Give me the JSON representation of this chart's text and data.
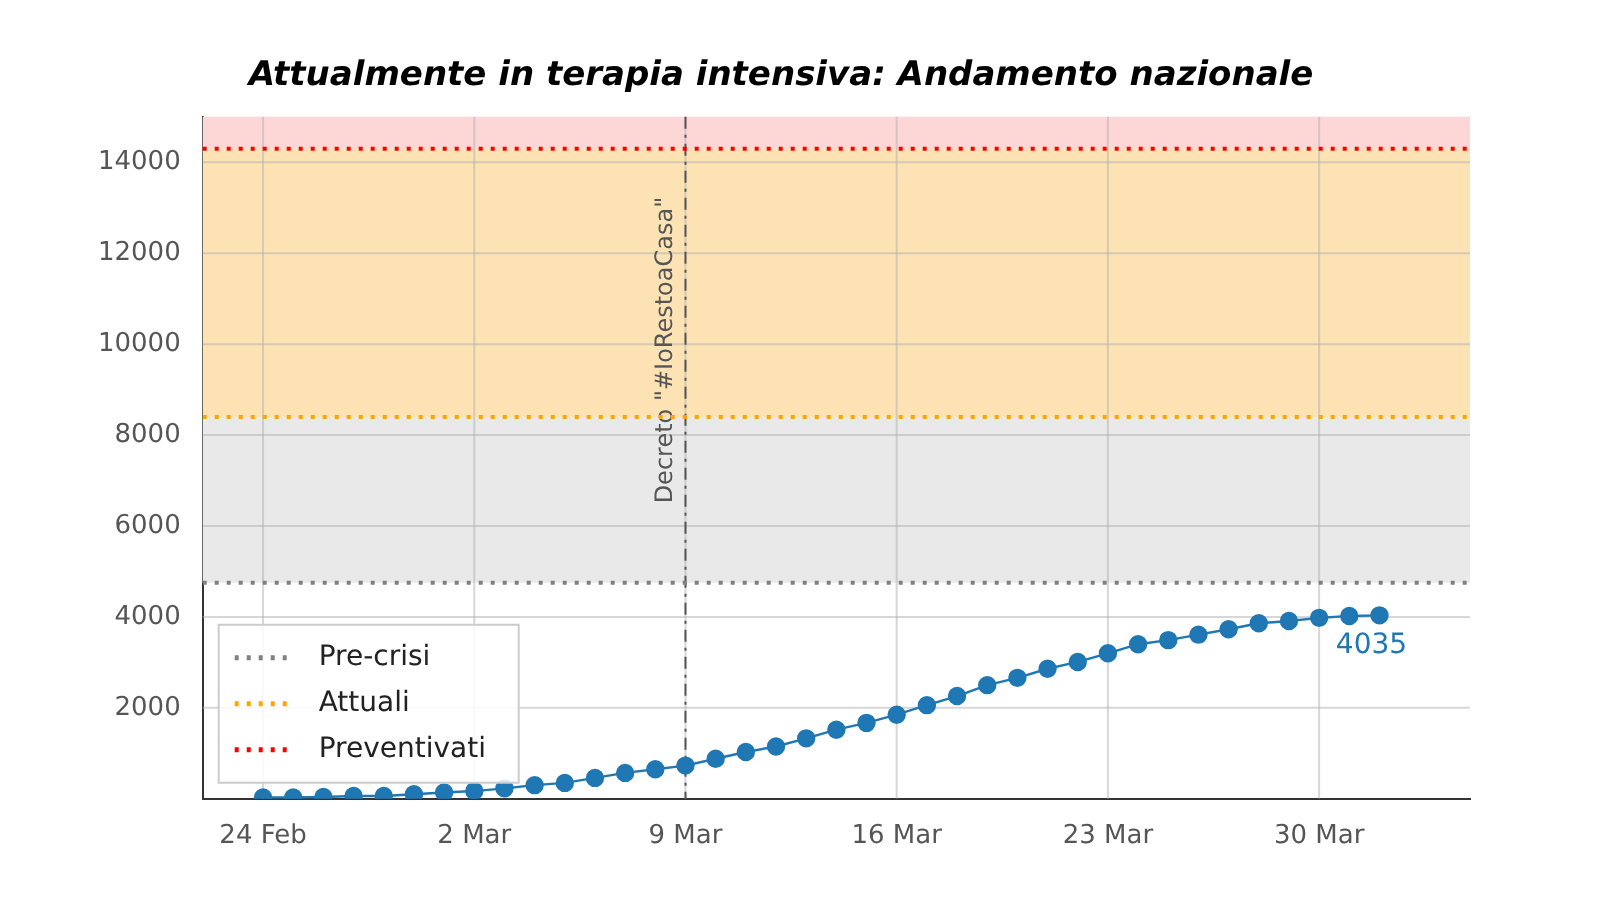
{
  "chart_data": {
    "type": "line",
    "title": "Attualmente in terapia intensiva: Andamento nazionale",
    "x": [
      "--02-24",
      "--02-25",
      "--02-26",
      "--02-27",
      "--02-28",
      "--02-29",
      "--03-01",
      "--03-02",
      "--03-03",
      "--03-04",
      "--03-05",
      "--03-06",
      "--03-07",
      "--03-08",
      "--03-09",
      "--03-10",
      "--03-11",
      "--03-12",
      "--03-13",
      "--03-14",
      "--03-15",
      "--03-16",
      "--03-17",
      "--03-18",
      "--03-19",
      "--03-20",
      "--03-21",
      "--03-22",
      "--03-23",
      "--03-24",
      "--03-25",
      "--03-26",
      "--03-27",
      "--03-28",
      "--03-29",
      "--03-30",
      "--03-31",
      "--04-01"
    ],
    "series": [
      {
        "color": "#1f77b4",
        "values": [
          30,
          30,
          40,
          60,
          60,
          100,
          140,
          170,
          230,
          300,
          350,
          460,
          570,
          650,
          730,
          880,
          1030,
          1150,
          1330,
          1520,
          1670,
          1850,
          2060,
          2260,
          2500,
          2660,
          2860,
          3010,
          3200,
          3400,
          3490,
          3610,
          3730,
          3860,
          3910,
          3980,
          4020,
          4035
        ]
      }
    ],
    "xlim": [
      "--02-22",
      "--04-04"
    ],
    "xticks": [
      {
        "value": "--02-24",
        "label": "24 Feb"
      },
      {
        "value": "--03-02",
        "label": "2 Mar"
      },
      {
        "value": "--03-09",
        "label": "9 Mar"
      },
      {
        "value": "--03-16",
        "label": "16 Mar"
      },
      {
        "value": "--03-23",
        "label": "23 Mar"
      },
      {
        "value": "--03-30",
        "label": "30 Mar"
      }
    ],
    "ylim": [
      0,
      15000
    ],
    "yticks": [
      2000,
      4000,
      6000,
      8000,
      10000,
      12000,
      14000
    ],
    "bands": [
      {
        "axis": "y",
        "from": 4750,
        "to": 8400,
        "color": "#e9e9e9"
      },
      {
        "axis": "y",
        "from": 8400,
        "to": 14300,
        "color": "#fde3b4"
      },
      {
        "axis": "y",
        "from": 14300,
        "to": 15000,
        "color": "#fdd6d6"
      }
    ],
    "ref_lines": [
      {
        "axis": "y",
        "value": 4750,
        "label": "Pre-crisi",
        "color": "#808080",
        "line_style": "dotted"
      },
      {
        "axis": "y",
        "value": 8400,
        "label": "Attuali",
        "color": "#ffa500",
        "line_style": "dotted"
      },
      {
        "axis": "y",
        "value": 14300,
        "label": "Preventivati",
        "color": "#ff0000",
        "line_style": "dotted"
      },
      {
        "axis": "x",
        "value": "--03-09",
        "label": "Decreto \"#IoRestoaCasa\"",
        "color": "#555555",
        "line_style": "dashdot"
      }
    ],
    "annotations": [
      {
        "text": "4035",
        "x": "--04-01",
        "y": 4035
      }
    ],
    "grid": true,
    "legend": "bottom left",
    "marker": "circle",
    "line_style": "solid"
  }
}
